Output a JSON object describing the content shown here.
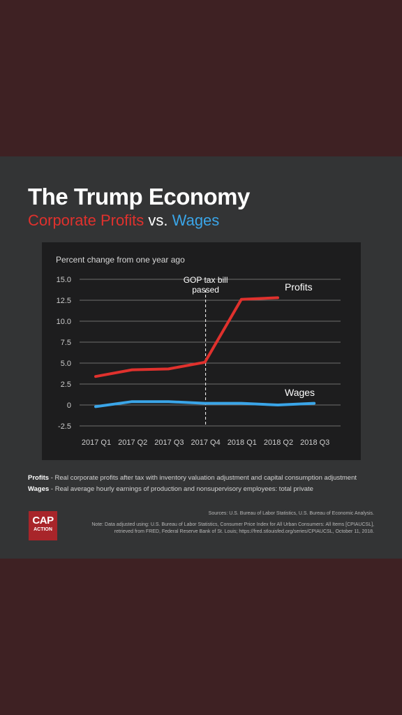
{
  "header": {
    "title": "The Trump Economy",
    "subtitle_profits": "Corporate Profits",
    "subtitle_vs": " vs. ",
    "subtitle_wages": "Wages"
  },
  "colors": {
    "profits": "#e0312d",
    "wages": "#3aa5e8",
    "background": "#3e2123",
    "panel": "#333435",
    "chart_bg": "#1d1d1e"
  },
  "chart_data": {
    "type": "line",
    "ylabel": "Percent change from one year ago",
    "x": [
      "2017 Q1",
      "2017 Q2",
      "2017 Q3",
      "2017 Q4",
      "2018 Q1",
      "2018 Q2",
      "2018 Q3"
    ],
    "yticks": [
      "15.0",
      "12.5",
      "10.0",
      "7.5",
      "5.0",
      "2.5",
      "0",
      "-2.5"
    ],
    "ylim": [
      -2.5,
      15.0
    ],
    "grid": true,
    "series": [
      {
        "name": "Profits",
        "values": [
          3.4,
          4.2,
          4.3,
          5.1,
          12.6,
          12.8,
          null
        ]
      },
      {
        "name": "Wages",
        "values": [
          -0.2,
          0.4,
          0.4,
          0.2,
          0.2,
          0.0,
          0.2
        ]
      }
    ],
    "annotation": {
      "label_line1": "GOP tax bill",
      "label_line2": "passed",
      "x": "2017 Q4"
    }
  },
  "definitions": {
    "profits_term": "Profits",
    "profits_text": " - Real corporate profits after tax with inventory valuation adjustment and capital consumption adjustment",
    "wages_term": "Wages",
    "wages_text": " - Real average hourly earnings of production and nonsupervisory employees: total private"
  },
  "logo": {
    "top": "CAP",
    "bottom": "ACTION"
  },
  "footer": {
    "sources": "Sources: U.S. Bureau of Labor Statistics, U.S. Bureau of Economic Analysis.",
    "note_line1": "Note: Data adjusted using: U.S. Bureau of Labor Statistics, Consumer Price Index for All Urban Consumers: All Items [CPIAUCSL],",
    "note_line2": "retrieved from FRED, Federal Reserve Bank of St. Louis; https://fred.stlouisfed.org/series/CPIAUCSL, October 11, 2018."
  }
}
